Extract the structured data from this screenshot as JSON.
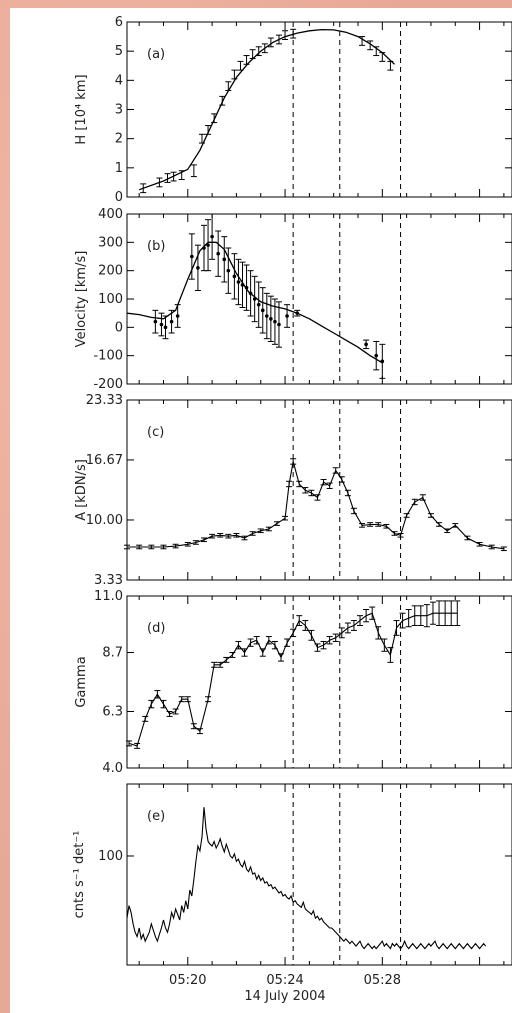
{
  "chart_data": [
    {
      "panel": "(a)",
      "type": "scatter",
      "ylabel": "H [10⁴ km]",
      "ylim": [
        0,
        6
      ],
      "yticks": [
        "0",
        "1",
        "2",
        "3",
        "4",
        "5",
        "6"
      ],
      "x": [
        "05:18:10",
        "05:18:50",
        "05:19:10",
        "05:19:25",
        "05:19:45",
        "05:20:15",
        "05:20:35",
        "05:20:50",
        "05:21:05",
        "05:21:25",
        "05:21:40",
        "05:21:55",
        "05:22:10",
        "05:22:25",
        "05:22:40",
        "05:22:55",
        "05:23:10",
        "05:23:25",
        "05:23:45",
        "05:24:00",
        "05:24:20",
        "05:27:10",
        "05:27:30",
        "05:27:45",
        "05:28:00",
        "05:28:20"
      ],
      "values": [
        0.3,
        0.5,
        0.65,
        0.7,
        0.75,
        0.9,
        2.0,
        2.3,
        2.7,
        3.3,
        3.8,
        4.2,
        4.5,
        4.7,
        4.9,
        5.0,
        5.1,
        5.3,
        5.4,
        5.55,
        5.6,
        5.35,
        5.2,
        5.0,
        4.8,
        4.5
      ],
      "errors": [
        0.15,
        0.15,
        0.15,
        0.15,
        0.15,
        0.2,
        0.15,
        0.15,
        0.15,
        0.15,
        0.15,
        0.15,
        0.15,
        0.15,
        0.15,
        0.15,
        0.15,
        0.15,
        0.15,
        0.15,
        0.15,
        0.15,
        0.15,
        0.15,
        0.15,
        0.15
      ],
      "fit": {
        "x": [
          "05:18:00",
          "05:19:00",
          "05:20:00",
          "05:20:30",
          "05:21:00",
          "05:21:30",
          "05:22:00",
          "05:22:30",
          "05:23:00",
          "05:23:30",
          "05:24:00",
          "05:24:30",
          "05:25:00",
          "05:25:30",
          "05:26:00",
          "05:26:30",
          "05:27:00",
          "05:27:30",
          "05:28:00",
          "05:28:30"
        ],
        "values": [
          0.25,
          0.55,
          0.95,
          1.6,
          2.5,
          3.4,
          4.1,
          4.6,
          5.0,
          5.3,
          5.5,
          5.62,
          5.7,
          5.74,
          5.73,
          5.65,
          5.5,
          5.25,
          4.95,
          4.55
        ]
      }
    },
    {
      "panel": "(b)",
      "type": "scatter",
      "ylabel": "Velocity [km/s]",
      "ylim": [
        -200,
        400
      ],
      "yticks": [
        "-200",
        "-100",
        "0",
        "100",
        "200",
        "300",
        "400"
      ],
      "x": [
        "05:18:40",
        "05:18:55",
        "05:19:05",
        "05:19:20",
        "05:19:35",
        "05:20:10",
        "05:20:25",
        "05:20:40",
        "05:20:50",
        "05:21:00",
        "05:21:15",
        "05:21:30",
        "05:21:40",
        "05:21:55",
        "05:22:05",
        "05:22:15",
        "05:22:25",
        "05:22:35",
        "05:22:45",
        "05:22:55",
        "05:23:05",
        "05:23:15",
        "05:23:25",
        "05:23:35",
        "05:23:45",
        "05:24:05",
        "05:24:30",
        "05:27:20",
        "05:27:45",
        "05:28:00"
      ],
      "values": [
        20,
        10,
        0,
        20,
        40,
        250,
        210,
        280,
        290,
        320,
        260,
        240,
        200,
        180,
        160,
        150,
        140,
        120,
        100,
        80,
        60,
        40,
        30,
        20,
        10,
        40,
        50,
        -60,
        -100,
        -120
      ],
      "errors": [
        40,
        40,
        40,
        40,
        40,
        80,
        80,
        80,
        90,
        80,
        80,
        80,
        80,
        80,
        80,
        80,
        80,
        80,
        80,
        80,
        80,
        80,
        80,
        80,
        80,
        40,
        10,
        15,
        50,
        60
      ],
      "fit": {
        "x": [
          "05:17:30",
          "05:18:00",
          "05:18:30",
          "05:19:00",
          "05:19:30",
          "05:20:00",
          "05:20:30",
          "05:20:50",
          "05:21:10",
          "05:21:30",
          "05:22:00",
          "05:22:30",
          "05:23:00",
          "05:23:30",
          "05:24:00",
          "05:24:30",
          "05:25:00",
          "05:25:30",
          "05:26:00",
          "05:26:30",
          "05:27:00",
          "05:27:30",
          "05:28:00"
        ],
        "values": [
          50,
          45,
          35,
          30,
          60,
          170,
          270,
          300,
          300,
          275,
          190,
          125,
          90,
          75,
          65,
          50,
          30,
          5,
          -20,
          -45,
          -70,
          -100,
          -125
        ]
      }
    },
    {
      "panel": "(c)",
      "type": "line",
      "ylabel": "A [kDN/s]",
      "ylim": [
        3.33,
        23.33
      ],
      "yticks": [
        "3.33",
        "10.00",
        "16.67",
        "23.33"
      ],
      "x": [
        "05:17:30",
        "05:18:00",
        "05:18:30",
        "05:19:00",
        "05:19:30",
        "05:20:00",
        "05:20:20",
        "05:20:40",
        "05:21:00",
        "05:21:20",
        "05:21:40",
        "05:22:00",
        "05:22:20",
        "05:22:40",
        "05:23:00",
        "05:23:20",
        "05:23:40",
        "05:24:00",
        "05:24:10",
        "05:24:20",
        "05:24:35",
        "05:24:50",
        "05:25:05",
        "05:25:20",
        "05:25:35",
        "05:25:50",
        "05:26:05",
        "05:26:20",
        "05:26:35",
        "05:26:50",
        "05:27:10",
        "05:27:30",
        "05:27:50",
        "05:28:10",
        "05:28:30",
        "05:28:45",
        "05:29:00",
        "05:29:20",
        "05:29:40",
        "05:30:00",
        "05:30:20",
        "05:30:40",
        "05:31:00",
        "05:31:30",
        "05:32:00",
        "05:32:30",
        "05:33:00"
      ],
      "values": [
        7.0,
        7.0,
        7.0,
        7.0,
        7.1,
        7.3,
        7.5,
        7.8,
        8.2,
        8.3,
        8.2,
        8.3,
        8.0,
        8.5,
        8.8,
        9.0,
        9.6,
        10.2,
        14.0,
        16.5,
        14.0,
        13.3,
        13.0,
        12.5,
        14.2,
        13.8,
        15.5,
        14.5,
        13.0,
        11.0,
        9.4,
        9.5,
        9.5,
        9.3,
        8.5,
        8.3,
        10.5,
        12.0,
        12.5,
        10.5,
        9.5,
        8.8,
        9.4,
        8.0,
        7.3,
        7.0,
        6.8
      ],
      "errors": [
        0.2,
        0.2,
        0.2,
        0.2,
        0.2,
        0.2,
        0.2,
        0.2,
        0.2,
        0.2,
        0.2,
        0.2,
        0.2,
        0.2,
        0.2,
        0.2,
        0.2,
        0.2,
        0.3,
        0.3,
        0.3,
        0.3,
        0.3,
        0.3,
        0.3,
        0.3,
        0.3,
        0.3,
        0.3,
        0.3,
        0.2,
        0.2,
        0.2,
        0.2,
        0.2,
        0.2,
        0.2,
        0.3,
        0.3,
        0.2,
        0.2,
        0.2,
        0.2,
        0.2,
        0.2,
        0.2,
        0.2
      ]
    },
    {
      "panel": "(d)",
      "type": "line",
      "ylabel": "Gamma",
      "ylim": [
        4.0,
        11.0
      ],
      "yticks": [
        "4.0",
        "6.3",
        "8.7",
        "11.0"
      ],
      "x": [
        "05:17:35",
        "05:17:55",
        "05:18:15",
        "05:18:30",
        "05:18:45",
        "05:19:00",
        "05:19:15",
        "05:19:30",
        "05:19:45",
        "05:20:00",
        "05:20:15",
        "05:20:30",
        "05:20:50",
        "05:21:05",
        "05:21:20",
        "05:21:35",
        "05:21:50",
        "05:22:05",
        "05:22:20",
        "05:22:35",
        "05:22:50",
        "05:23:05",
        "05:23:20",
        "05:23:35",
        "05:23:50",
        "05:24:05",
        "05:24:20",
        "05:24:35",
        "05:24:50",
        "05:25:05",
        "05:25:20",
        "05:25:35",
        "05:25:50",
        "05:26:05",
        "05:26:20",
        "05:26:35",
        "05:26:50",
        "05:27:05",
        "05:27:20",
        "05:27:35",
        "05:27:50",
        "05:28:05",
        "05:28:20",
        "05:28:35",
        "05:28:50",
        "05:29:05",
        "05:29:20",
        "05:29:35",
        "05:29:50",
        "05:30:05",
        "05:30:20",
        "05:30:35",
        "05:30:50",
        "05:31:05"
      ],
      "values": [
        5.0,
        4.9,
        6.0,
        6.6,
        7.0,
        6.6,
        6.2,
        6.3,
        6.8,
        6.8,
        5.7,
        5.5,
        6.8,
        8.2,
        8.2,
        8.4,
        8.6,
        9.0,
        8.7,
        9.1,
        9.2,
        8.7,
        9.2,
        9.0,
        8.5,
        9.1,
        9.5,
        10.0,
        9.8,
        9.4,
        8.9,
        9.0,
        9.2,
        9.3,
        9.5,
        9.7,
        9.8,
        10.0,
        10.2,
        10.3,
        9.5,
        9.0,
        8.6,
        9.7,
        10.0,
        10.1,
        10.2,
        10.2,
        10.2,
        10.3,
        10.3,
        10.3,
        10.3,
        10.3
      ],
      "errors": [
        0.1,
        0.1,
        0.1,
        0.15,
        0.15,
        0.15,
        0.1,
        0.1,
        0.1,
        0.1,
        0.1,
        0.1,
        0.1,
        0.1,
        0.1,
        0.1,
        0.1,
        0.15,
        0.15,
        0.15,
        0.15,
        0.15,
        0.15,
        0.15,
        0.15,
        0.15,
        0.15,
        0.2,
        0.2,
        0.2,
        0.15,
        0.15,
        0.15,
        0.15,
        0.2,
        0.2,
        0.2,
        0.2,
        0.25,
        0.25,
        0.25,
        0.25,
        0.3,
        0.3,
        0.3,
        0.35,
        0.4,
        0.4,
        0.45,
        0.45,
        0.5,
        0.5,
        0.5,
        0.5
      ]
    },
    {
      "panel": "(e)",
      "type": "line",
      "ylabel": "cnts s⁻¹ det⁻¹",
      "ylog": true,
      "ylim": [
        35,
        200
      ],
      "yticks": [
        "100"
      ],
      "x_start": "05:17:30",
      "x_step_seconds": 5,
      "values": [
        55,
        62,
        58,
        52,
        48,
        46,
        50,
        45,
        47,
        44,
        46,
        48,
        52,
        49,
        46,
        44,
        47,
        50,
        54,
        50,
        48,
        52,
        58,
        55,
        60,
        57,
        54,
        62,
        58,
        65,
        60,
        72,
        68,
        80,
        95,
        110,
        105,
        120,
        160,
        130,
        115,
        112,
        110,
        115,
        108,
        112,
        118,
        110,
        104,
        112,
        106,
        100,
        98,
        102,
        95,
        97,
        92,
        90,
        95,
        88,
        86,
        90,
        84,
        85,
        80,
        83,
        79,
        81,
        77,
        78,
        75,
        76,
        73,
        74,
        72,
        70,
        71,
        68,
        69,
        67,
        66,
        68,
        64,
        65,
        63,
        62,
        61,
        64,
        60,
        59,
        58,
        57,
        59,
        55,
        56,
        54,
        55,
        53,
        52,
        51,
        50,
        50,
        49,
        48,
        47,
        46,
        45,
        44,
        45,
        44,
        43,
        44,
        43,
        42,
        43,
        44,
        42,
        41,
        42,
        43,
        42,
        41,
        42,
        41,
        42,
        43,
        44,
        42,
        43,
        42,
        41,
        43,
        42,
        43,
        42,
        41,
        42,
        44,
        42,
        41,
        42,
        43,
        42,
        41,
        42,
        43,
        42,
        41,
        42,
        43,
        42,
        43,
        44,
        42,
        41,
        42,
        43,
        42,
        41,
        42,
        43,
        42,
        41,
        42,
        43,
        42,
        41,
        42,
        43,
        42,
        41,
        42,
        43,
        42,
        41,
        42,
        43,
        42
      ]
    }
  ],
  "x_axis": {
    "range": [
      "05:17:30",
      "05:33:20"
    ],
    "ticks": [
      "05:20",
      "05:24",
      "05:28"
    ],
    "title": "14 July 2004"
  },
  "vertical_markers": [
    "05:24:20",
    "05:26:15",
    "05:28:45"
  ]
}
